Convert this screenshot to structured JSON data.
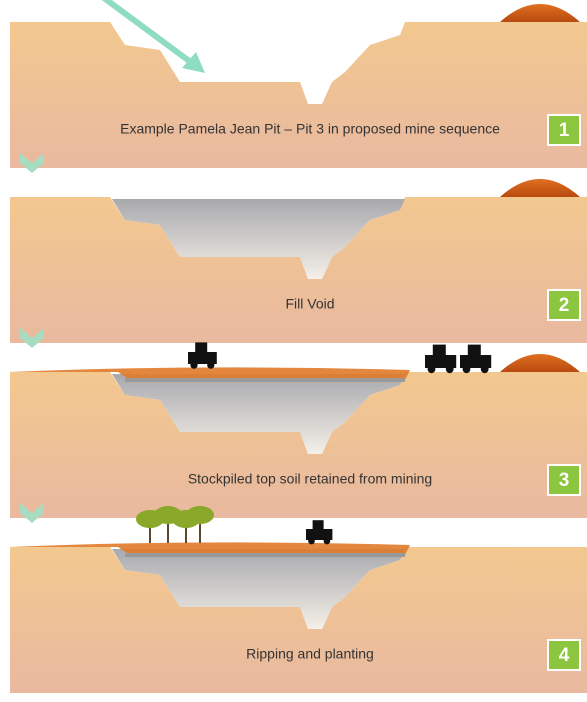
{
  "panels": [
    {
      "caption": "Example Pamela Jean Pit – Pit 3 in proposed mine sequence",
      "number": "1"
    },
    {
      "caption": "Fill Void",
      "number": "2"
    },
    {
      "caption": "Stockpiled top soil retained from mining",
      "number": "3"
    },
    {
      "caption": "Ripping and planting",
      "number": "4"
    }
  ]
}
